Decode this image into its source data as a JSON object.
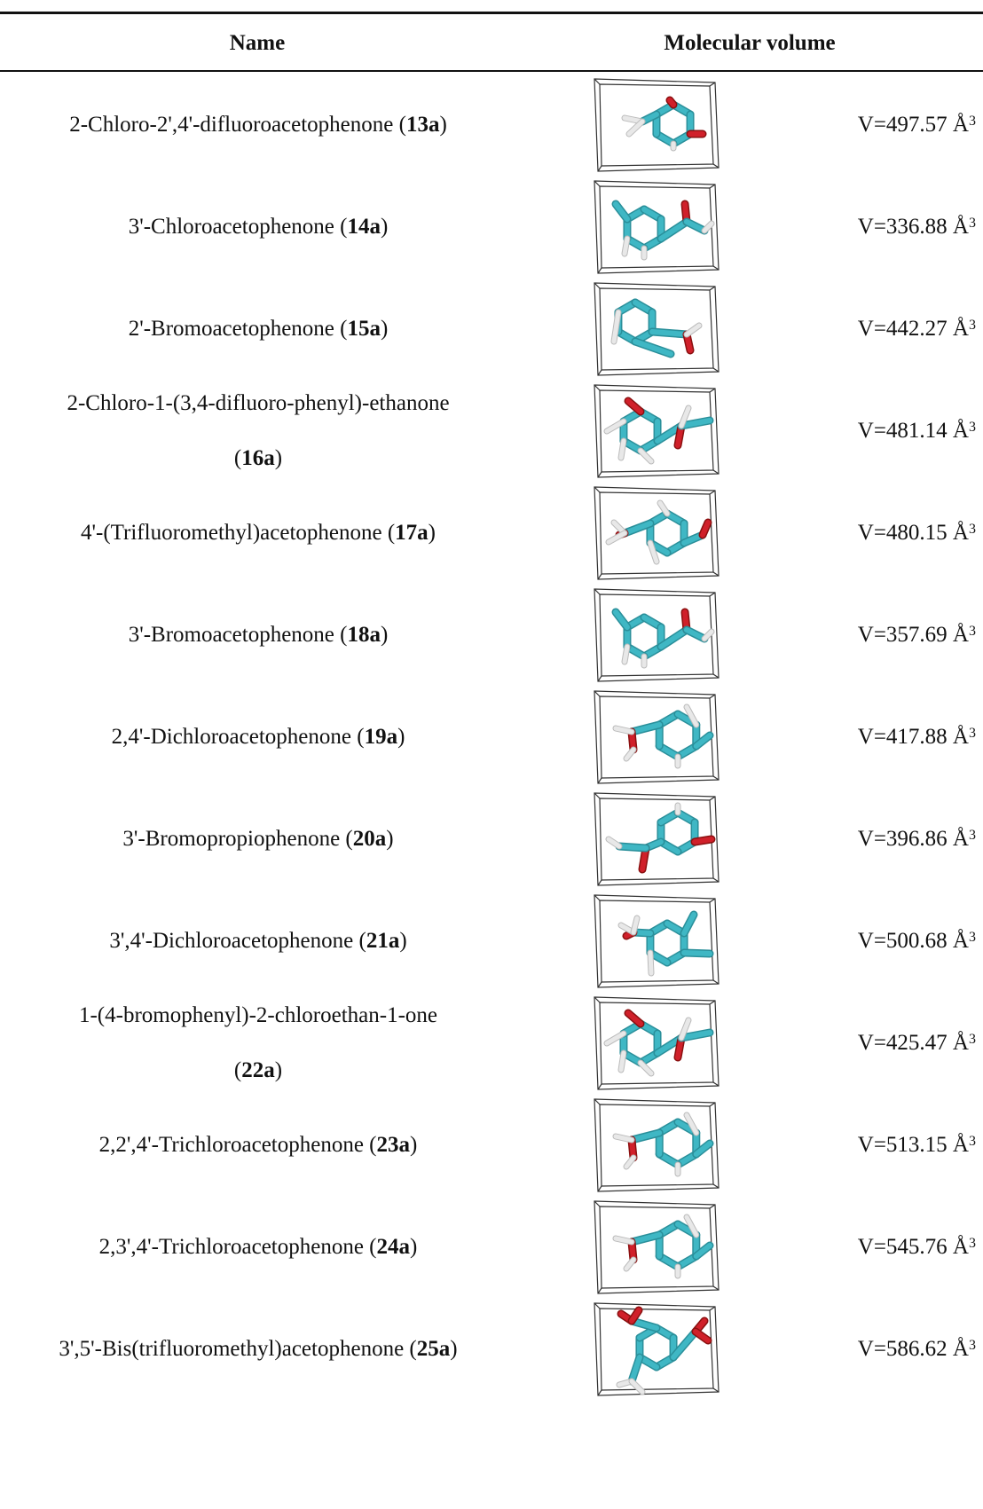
{
  "table": {
    "headers": {
      "name": "Name",
      "volume": "Molecular volume"
    },
    "rows": [
      {
        "name": "2-Chloro-2',4'-difluoroacetophenone (",
        "code": "13a",
        "close": ")",
        "volume": "V=497.57 Å",
        "unit_sup": "3",
        "mol": "A"
      },
      {
        "name": "3'-Chloroacetophenone (",
        "code": "14a",
        "close": ")",
        "volume": "V=336.88 Å",
        "unit_sup": "3",
        "mol": "B"
      },
      {
        "name": "2'-Bromoacetophenone (",
        "code": "15a",
        "close": ")",
        "volume": "V=442.27 Å",
        "unit_sup": "3",
        "mol": "C"
      },
      {
        "name": "2-Chloro-1-(3,4-difluoro-phenyl)-ethanone",
        "code": "16a",
        "open": "(",
        "close": ")",
        "volume": "V=481.14 Å",
        "unit_sup": "3",
        "mol": "D",
        "wrapped": true
      },
      {
        "name": "4'-(Trifluoromethyl)acetophenone (",
        "code": "17a",
        "close": ")",
        "volume": "V=480.15 Å",
        "unit_sup": "3",
        "mol": "E"
      },
      {
        "name": "3'-Bromoacetophenone (",
        "code": "18a",
        "close": ")",
        "volume": "V=357.69 Å",
        "unit_sup": "3",
        "mol": "B"
      },
      {
        "name": "2,4'-Dichloroacetophenone (",
        "code": "19a",
        "close": ")",
        "volume": "V=417.88 Å",
        "unit_sup": "3",
        "mol": "F"
      },
      {
        "name": "3'-Bromopropiophenone (",
        "code": "20a",
        "close": ")",
        "volume": "V=396.86 Å",
        "unit_sup": "3",
        "mol": "G"
      },
      {
        "name": "3',4'-Dichloroacetophenone (",
        "code": "21a",
        "close": ")",
        "volume": "V=500.68 Å",
        "unit_sup": "3",
        "mol": "H"
      },
      {
        "name": "1-(4-bromophenyl)-2-chloroethan-1-one",
        "code": "22a",
        "open": "(",
        "close": ")",
        "volume": "V=425.47 Å",
        "unit_sup": "3",
        "mol": "D",
        "wrapped": true
      },
      {
        "name": "2,2',4'-Trichloroacetophenone (",
        "code": "23a",
        "close": ")",
        "volume": "V=513.15 Å",
        "unit_sup": "3",
        "mol": "F"
      },
      {
        "name": "2,3',4'-Trichloroacetophenone (",
        "code": "24a",
        "close": ")",
        "volume": "V=545.76 Å",
        "unit_sup": "3",
        "mol": "F"
      },
      {
        "name": "3',5'-Bis(trifluoromethyl)acetophenone (",
        "code": "25a",
        "close": ")",
        "volume": "V=586.62 Å",
        "unit_sup": "3",
        "mol": "I"
      }
    ]
  },
  "colors": {
    "carbon": "#3fb7c4",
    "carbon_shade": "#2a8f9a",
    "oxygen": "#d0202a",
    "hydrogen": "#e8e8e8",
    "box": "#333333"
  }
}
